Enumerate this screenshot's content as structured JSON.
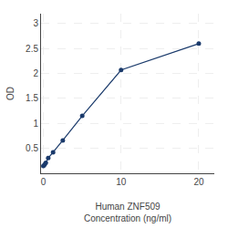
{
  "chart_data": {
    "type": "line",
    "x": [
      0,
      0.156,
      0.313,
      0.625,
      1.25,
      2.5,
      5,
      10,
      20
    ],
    "values": [
      0.148,
      0.172,
      0.21,
      0.305,
      0.42,
      0.66,
      1.15,
      2.07,
      2.6
    ],
    "color": "#1a3a6b",
    "marker": "circle",
    "xlabel": "Human ZNF509\nConcentration (ng/ml)",
    "ylabel": "OD",
    "xlim": [
      -0.3,
      22
    ],
    "ylim": [
      0.0,
      3.2
    ],
    "xticks": [
      0,
      10,
      20
    ],
    "yticks": [
      0.5,
      1.0,
      1.5,
      2.0,
      2.5,
      3.0
    ],
    "grid": true
  }
}
